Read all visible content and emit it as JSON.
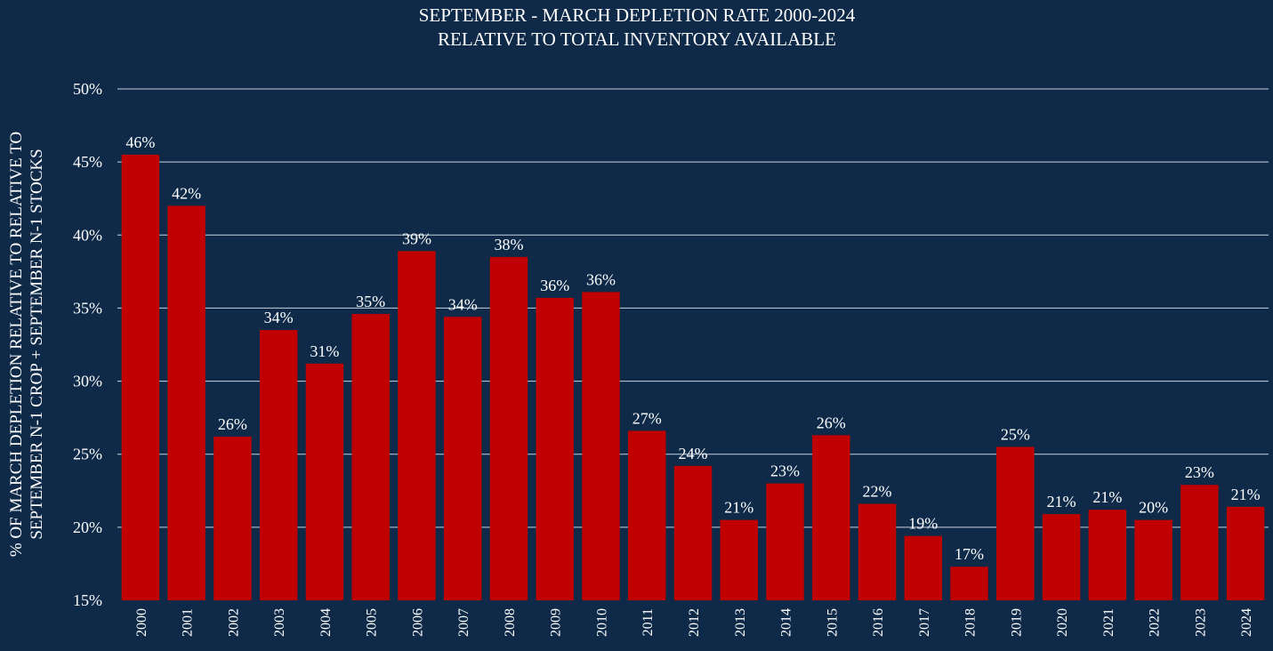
{
  "chart_data": {
    "type": "bar",
    "title_lines": [
      "SEPTEMBER - MARCH DEPLETION RATE 2000-2024",
      "RELATIVE TO TOTAL INVENTORY AVAILABLE"
    ],
    "ylabel_lines": [
      "% OF MARCH DEPLETION RELATIVE TO  RELATIVE TO",
      "SEPTEMBER N-1 CROP + SEPTEMBER N-1 STOCKS"
    ],
    "xlabel": "",
    "categories": [
      "2000",
      "2001",
      "2002",
      "2003",
      "2004",
      "2005",
      "2006",
      "2007",
      "2008",
      "2009",
      "2010",
      "2011",
      "2012",
      "2013",
      "2014",
      "2015",
      "2016",
      "2017",
      "2018",
      "2019",
      "2020",
      "2021",
      "2022",
      "2023",
      "2024"
    ],
    "values": [
      45.5,
      42.0,
      26.2,
      33.5,
      31.2,
      34.6,
      38.9,
      34.4,
      38.5,
      35.7,
      36.1,
      26.6,
      24.2,
      20.5,
      23.0,
      26.3,
      21.6,
      19.4,
      17.3,
      25.5,
      20.9,
      21.2,
      20.5,
      22.9,
      21.4
    ],
    "data_labels": [
      "46%",
      "42%",
      "26%",
      "34%",
      "31%",
      "35%",
      "39%",
      "34%",
      "38%",
      "36%",
      "36%",
      "27%",
      "24%",
      "21%",
      "23%",
      "26%",
      "22%",
      "19%",
      "17%",
      "25%",
      "21%",
      "21%",
      "20%",
      "23%",
      "21%"
    ],
    "yticks": [
      15,
      20,
      25,
      30,
      35,
      40,
      45,
      50
    ],
    "ytick_labels": [
      "15%",
      "20%",
      "25%",
      "30%",
      "35%",
      "40%",
      "45%",
      "50%"
    ],
    "ylim": [
      15,
      50
    ],
    "grid": true,
    "legend": "none",
    "bar_color": "#c00000",
    "background_color": "#0e2a48",
    "text_color": "#ffffff"
  }
}
